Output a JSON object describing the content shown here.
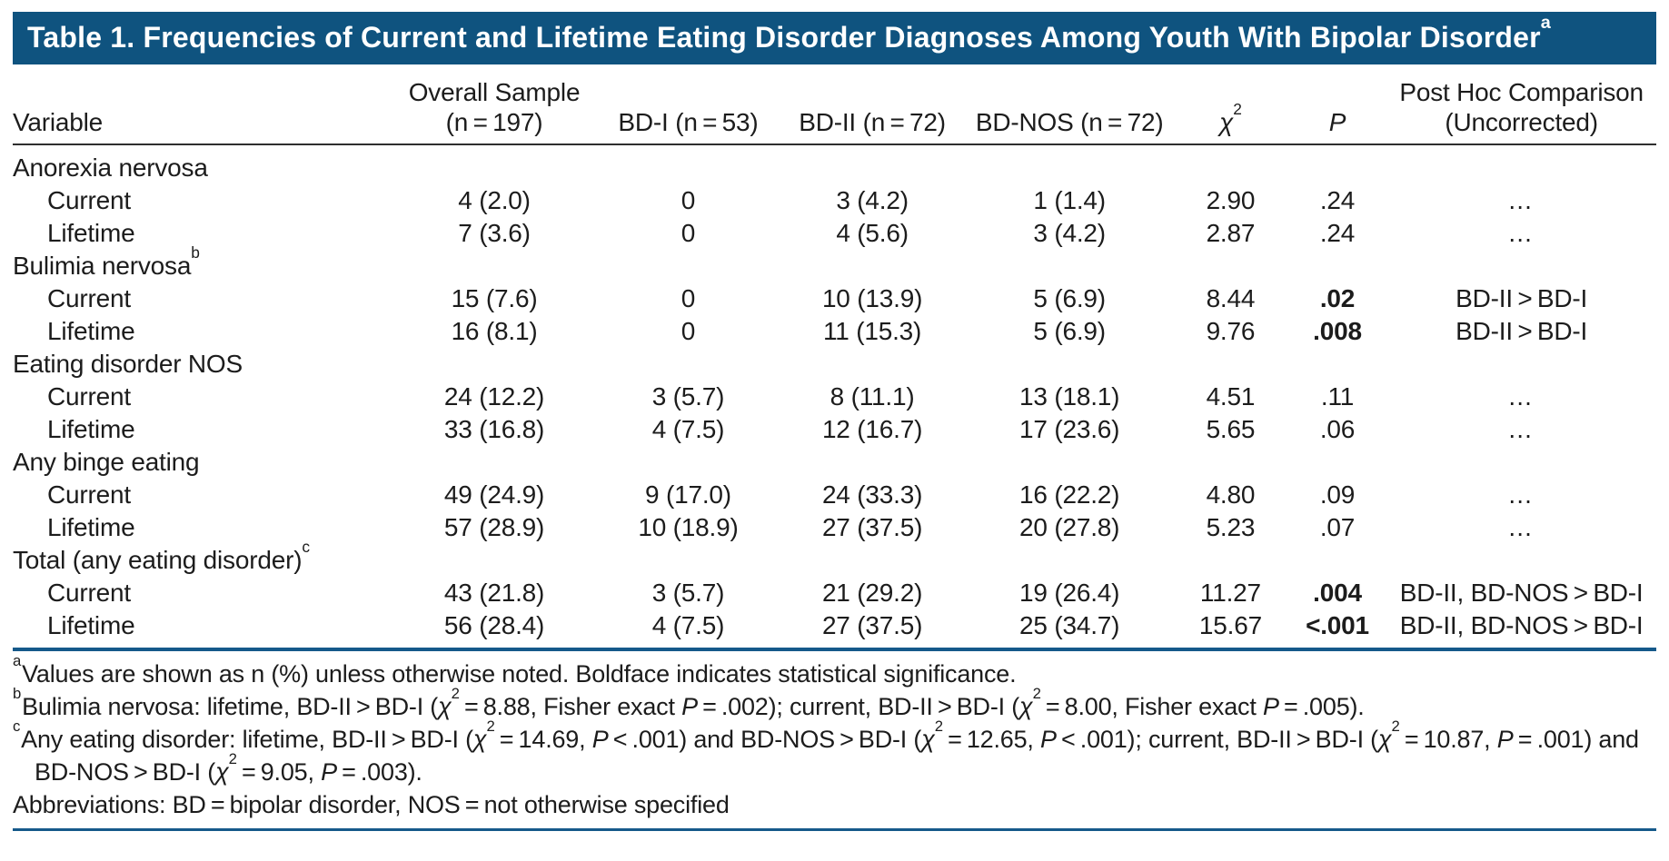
{
  "title": {
    "text": "Table 1. Frequencies of Current and Lifetime Eating Disorder Diagnoses Among Youth With Bipolar Disorder",
    "sup": "a"
  },
  "colors": {
    "title_bar_background": "#0f537f",
    "title_text": "#ffffff",
    "blue_rule": "#15598a",
    "header_rule": "#2e2e2e",
    "body_text": "#1c1c1c"
  },
  "table": {
    "columns": [
      {
        "id": "variable",
        "line1": "",
        "line2": "Variable",
        "align": "left"
      },
      {
        "id": "overall-sample",
        "line1": "Overall Sample",
        "line2": "(n = 197)",
        "align": "center"
      },
      {
        "id": "bd-i",
        "line1": "",
        "line2": "BD-I (n = 53)",
        "align": "center"
      },
      {
        "id": "bd-ii",
        "line1": "",
        "line2": "BD-II (n = 72)",
        "align": "center"
      },
      {
        "id": "bd-nos",
        "line1": "",
        "line2": "BD-NOS (n = 72)",
        "align": "center"
      },
      {
        "id": "chi-square",
        "line1": "",
        "line2": "χ²",
        "align": "center"
      },
      {
        "id": "p-value",
        "line1": "",
        "line2": "P",
        "align": "center",
        "italic": true
      },
      {
        "id": "post-hoc",
        "line1": "Post Hoc Comparison",
        "line2": "(Uncorrected)",
        "align": "center"
      }
    ],
    "rows": [
      {
        "type": "section",
        "label": "Anorexia nervosa",
        "sup": ""
      },
      {
        "type": "data",
        "label": "Current",
        "values": [
          "4 (2.0)",
          "0",
          "3 (4.2)",
          "1 (1.4)",
          "2.90",
          ".24",
          "…"
        ],
        "p_bold": false
      },
      {
        "type": "data",
        "label": "Lifetime",
        "values": [
          "7 (3.6)",
          "0",
          "4 (5.6)",
          "3 (4.2)",
          "2.87",
          ".24",
          "…"
        ],
        "p_bold": false
      },
      {
        "type": "section",
        "label": "Bulimia nervosa",
        "sup": "b"
      },
      {
        "type": "data",
        "label": "Current",
        "values": [
          "15 (7.6)",
          "0",
          "10 (13.9)",
          "5 (6.9)",
          "8.44",
          ".02",
          "BD-II > BD-I"
        ],
        "p_bold": true
      },
      {
        "type": "data",
        "label": "Lifetime",
        "values": [
          "16 (8.1)",
          "0",
          "11 (15.3)",
          "5 (6.9)",
          "9.76",
          ".008",
          "BD-II > BD-I"
        ],
        "p_bold": true
      },
      {
        "type": "section",
        "label": "Eating disorder NOS",
        "sup": ""
      },
      {
        "type": "data",
        "label": "Current",
        "values": [
          "24 (12.2)",
          "3 (5.7)",
          "8 (11.1)",
          "13 (18.1)",
          "4.51",
          ".11",
          "…"
        ],
        "p_bold": false
      },
      {
        "type": "data",
        "label": "Lifetime",
        "values": [
          "33 (16.8)",
          "4 (7.5)",
          "12 (16.7)",
          "17 (23.6)",
          "5.65",
          ".06",
          "…"
        ],
        "p_bold": false
      },
      {
        "type": "section",
        "label": "Any binge eating",
        "sup": ""
      },
      {
        "type": "data",
        "label": "Current",
        "values": [
          "49 (24.9)",
          "9 (17.0)",
          "24 (33.3)",
          "16 (22.2)",
          "4.80",
          ".09",
          "…"
        ],
        "p_bold": false
      },
      {
        "type": "data",
        "label": "Lifetime",
        "values": [
          "57 (28.9)",
          "10 (18.9)",
          "27 (37.5)",
          "20 (27.8)",
          "5.23",
          ".07",
          "…"
        ],
        "p_bold": false
      },
      {
        "type": "section",
        "label": "Total (any eating disorder)",
        "sup": "c"
      },
      {
        "type": "data",
        "label": "Current",
        "values": [
          "43 (21.8)",
          "3 (5.7)",
          "21 (29.2)",
          "19 (26.4)",
          "11.27",
          ".004",
          "BD-II, BD-NOS > BD-I"
        ],
        "p_bold": true
      },
      {
        "type": "data",
        "label": "Lifetime",
        "values": [
          "56 (28.4)",
          "4 (7.5)",
          "27 (37.5)",
          "25 (34.7)",
          "15.67",
          "<.001",
          "BD-II, BD-NOS > BD-I"
        ],
        "p_bold": true
      }
    ]
  },
  "footnotes": [
    {
      "sup": "a",
      "text": "Values are shown as n (%) unless otherwise noted. Boldface indicates statistical significance."
    },
    {
      "sup": "b",
      "text": "Bulimia nervosa: lifetime, BD-II > BD-I (χ² = 8.88, Fisher exact P = .002); current, BD-II > BD-I (χ² = 8.00, Fisher exact P = .005)."
    },
    {
      "sup": "c",
      "text": "Any eating disorder: lifetime, BD-II > BD-I (χ² = 14.69, P < .001) and BD-NOS > BD-I (χ² = 12.65, P < .001); current, BD-II > BD-I (χ² = 10.87, P = .001) and BD-NOS > BD-I (χ² = 9.05, P = .003)."
    },
    {
      "sup": "",
      "text": "Abbreviations: BD = bipolar disorder, NOS = not otherwise specified"
    }
  ]
}
